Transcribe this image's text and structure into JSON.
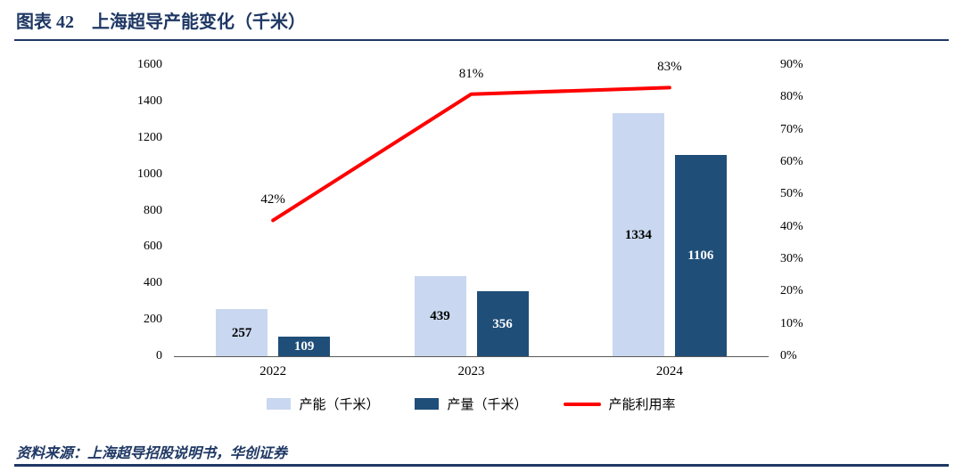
{
  "header": {
    "title": "图表 42　上海超导产能变化（千米）"
  },
  "source": {
    "text": "资料来源：上海超导招股说明书，华创证券"
  },
  "colors": {
    "navy": "#1F3864",
    "light_bar": "#C9D8F0",
    "dark_bar": "#1F4E79",
    "line_red": "#FF0000",
    "axis_line": "#595959"
  },
  "chart_data": {
    "type": "bar",
    "subtype": "grouped-bars-with-line",
    "title": "上海超导产能变化（千米）",
    "categories": [
      "2022",
      "2023",
      "2024"
    ],
    "series": [
      {
        "id": "capacity",
        "name": "产能（千米）",
        "type": "bar",
        "axis": "left",
        "color": "#C9D8F0",
        "label_color": "#000000",
        "values": [
          257,
          439,
          1334
        ]
      },
      {
        "id": "output",
        "name": "产量（千米）",
        "type": "bar",
        "axis": "left",
        "color": "#1F4E79",
        "label_color": "#FFFFFF",
        "values": [
          109,
          356,
          1106
        ]
      },
      {
        "id": "utilization",
        "name": "产能利用率",
        "type": "line",
        "axis": "right",
        "color": "#FF0000",
        "values": [
          42,
          81,
          83
        ],
        "labels": [
          "42%",
          "81%",
          "83%"
        ]
      }
    ],
    "left_axis": {
      "min": 0,
      "max": 1600,
      "step": 200,
      "ticks": [
        "0",
        "200",
        "400",
        "600",
        "800",
        "1000",
        "1200",
        "1400",
        "1600"
      ]
    },
    "right_axis": {
      "min": 0,
      "max": 90,
      "step": 10,
      "ticks": [
        "0%",
        "10%",
        "20%",
        "30%",
        "40%",
        "50%",
        "60%",
        "70%",
        "80%",
        "90%"
      ]
    },
    "legend_position": "bottom",
    "grid": false
  }
}
